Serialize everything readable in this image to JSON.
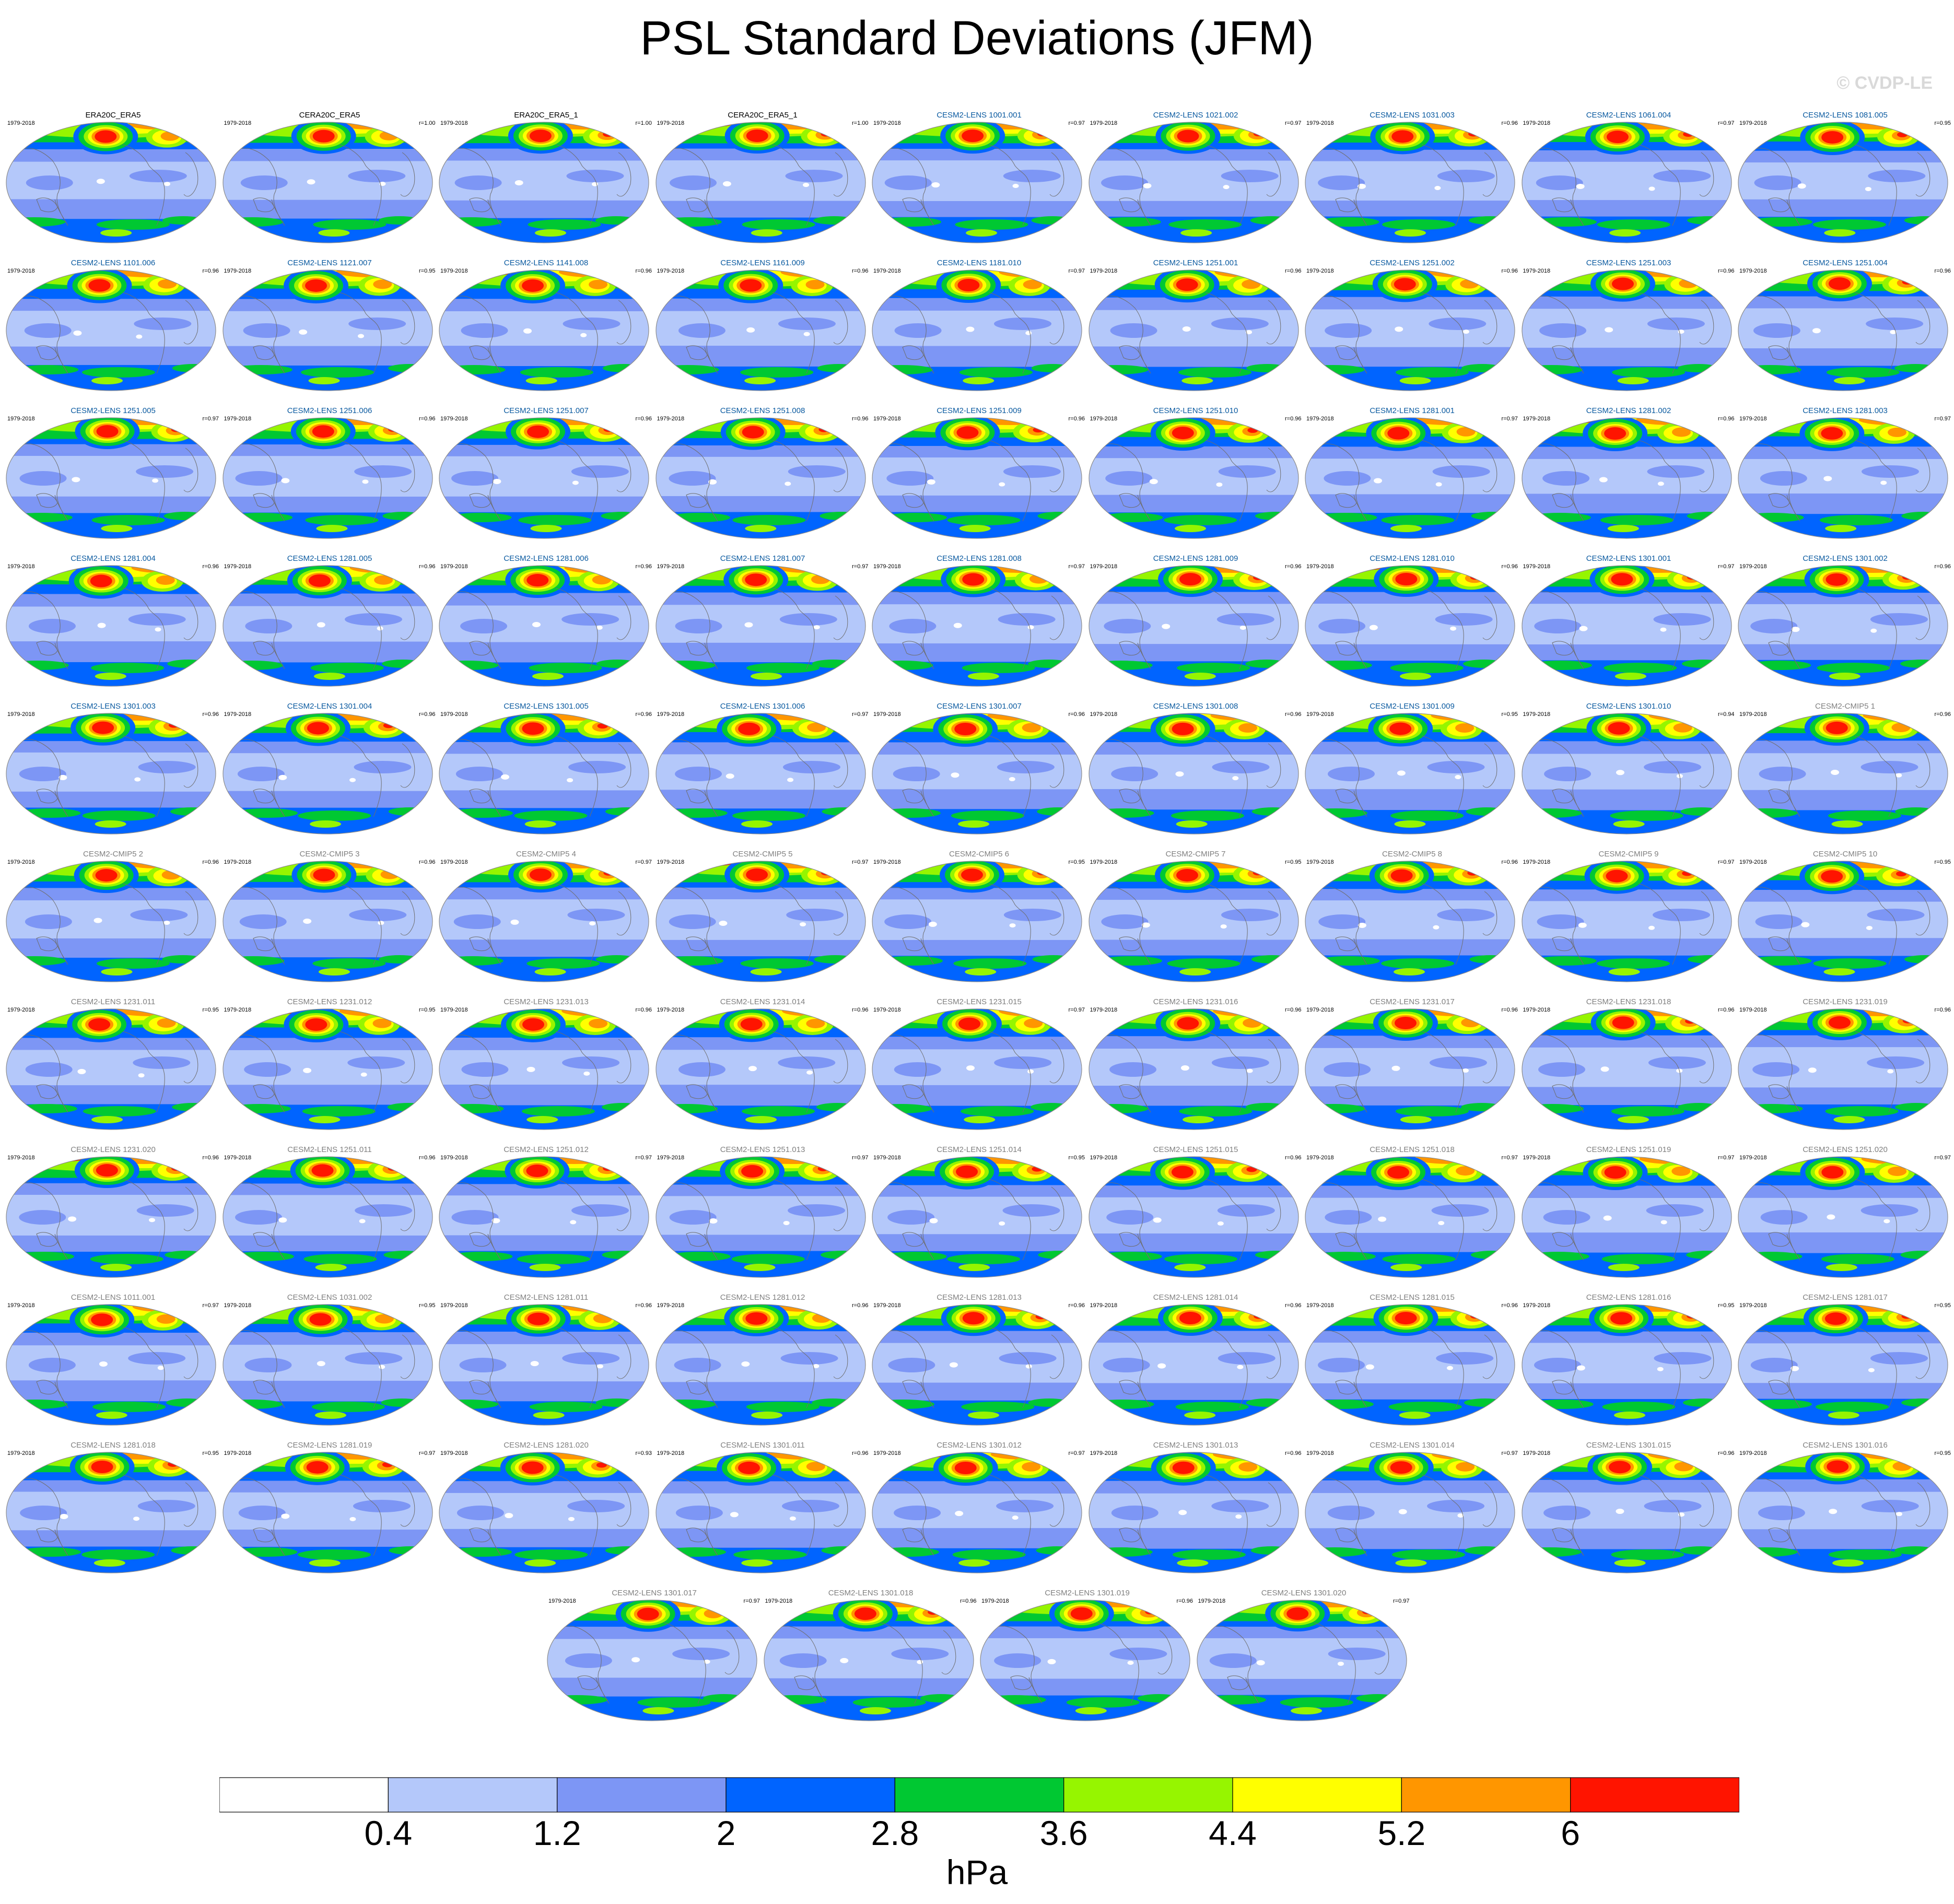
{
  "title": "PSL Standard Deviations (JFM)",
  "watermark": "© CVDP-LE",
  "period": "1979-2018",
  "panels": [
    {
      "name": "ERA20C_ERA5",
      "r": "",
      "ref": true
    },
    {
      "name": "CERA20C_ERA5",
      "r": "r=1.00",
      "ref": true
    },
    {
      "name": "ERA20C_ERA5_1",
      "r": "r=1.00",
      "ref": true
    },
    {
      "name": "CERA20C_ERA5_1",
      "r": "r=1.00",
      "ref": true
    },
    {
      "name": "CESM2-LENS 1001.001",
      "r": "r=0.97"
    },
    {
      "name": "CESM2-LENS 1021.002",
      "r": "r=0.97"
    },
    {
      "name": "CESM2-LENS 1031.003",
      "r": "r=0.96"
    },
    {
      "name": "CESM2-LENS 1061.004",
      "r": "r=0.97"
    },
    {
      "name": "CESM2-LENS 1081.005",
      "r": "r=0.95"
    },
    {
      "name": "CESM2-LENS 1101.006",
      "r": "r=0.96"
    },
    {
      "name": "CESM2-LENS 1121.007",
      "r": "r=0.95"
    },
    {
      "name": "CESM2-LENS 1141.008",
      "r": "r=0.96"
    },
    {
      "name": "CESM2-LENS 1161.009",
      "r": "r=0.96"
    },
    {
      "name": "CESM2-LENS 1181.010",
      "r": "r=0.97"
    },
    {
      "name": "CESM2-LENS 1251.001",
      "r": "r=0.96"
    },
    {
      "name": "CESM2-LENS 1251.002",
      "r": "r=0.96"
    },
    {
      "name": "CESM2-LENS 1251.003",
      "r": "r=0.96"
    },
    {
      "name": "CESM2-LENS 1251.004",
      "r": "r=0.96"
    },
    {
      "name": "CESM2-LENS 1251.005",
      "r": "r=0.97"
    },
    {
      "name": "CESM2-LENS 1251.006",
      "r": "r=0.96"
    },
    {
      "name": "CESM2-LENS 1251.007",
      "r": "r=0.96"
    },
    {
      "name": "CESM2-LENS 1251.008",
      "r": "r=0.96"
    },
    {
      "name": "CESM2-LENS 1251.009",
      "r": "r=0.96"
    },
    {
      "name": "CESM2-LENS 1251.010",
      "r": "r=0.96"
    },
    {
      "name": "CESM2-LENS 1281.001",
      "r": "r=0.97"
    },
    {
      "name": "CESM2-LENS 1281.002",
      "r": "r=0.96"
    },
    {
      "name": "CESM2-LENS 1281.003",
      "r": "r=0.97"
    },
    {
      "name": "CESM2-LENS 1281.004",
      "r": "r=0.96"
    },
    {
      "name": "CESM2-LENS 1281.005",
      "r": "r=0.96"
    },
    {
      "name": "CESM2-LENS 1281.006",
      "r": "r=0.96"
    },
    {
      "name": "CESM2-LENS 1281.007",
      "r": "r=0.97"
    },
    {
      "name": "CESM2-LENS 1281.008",
      "r": "r=0.97"
    },
    {
      "name": "CESM2-LENS 1281.009",
      "r": "r=0.96"
    },
    {
      "name": "CESM2-LENS 1281.010",
      "r": "r=0.96"
    },
    {
      "name": "CESM2-LENS 1301.001",
      "r": "r=0.97"
    },
    {
      "name": "CESM2-LENS 1301.002",
      "r": "r=0.96"
    },
    {
      "name": "CESM2-LENS 1301.003",
      "r": "r=0.96"
    },
    {
      "name": "CESM2-LENS 1301.004",
      "r": "r=0.96"
    },
    {
      "name": "CESM2-LENS 1301.005",
      "r": "r=0.96"
    },
    {
      "name": "CESM2-LENS 1301.006",
      "r": "r=0.97"
    },
    {
      "name": "CESM2-LENS 1301.007",
      "r": "r=0.96"
    },
    {
      "name": "CESM2-LENS 1301.008",
      "r": "r=0.96"
    },
    {
      "name": "CESM2-LENS 1301.009",
      "r": "r=0.95"
    },
    {
      "name": "CESM2-LENS 1301.010",
      "r": "r=0.94"
    },
    {
      "name": "CESM2-CMIP5 1",
      "r": "r=0.96"
    },
    {
      "name": "CESM2-CMIP5 2",
      "r": "r=0.96"
    },
    {
      "name": "CESM2-CMIP5 3",
      "r": "r=0.96"
    },
    {
      "name": "CESM2-CMIP5 4",
      "r": "r=0.97"
    },
    {
      "name": "CESM2-CMIP5 5",
      "r": "r=0.97"
    },
    {
      "name": "CESM2-CMIP5 6",
      "r": "r=0.95"
    },
    {
      "name": "CESM2-CMIP5 7",
      "r": "r=0.95"
    },
    {
      "name": "CESM2-CMIP5 8",
      "r": "r=0.96"
    },
    {
      "name": "CESM2-CMIP5 9",
      "r": "r=0.97"
    },
    {
      "name": "CESM2-CMIP5 10",
      "r": "r=0.95"
    },
    {
      "name": "CESM2-LENS 1231.011",
      "r": "r=0.95"
    },
    {
      "name": "CESM2-LENS 1231.012",
      "r": "r=0.95"
    },
    {
      "name": "CESM2-LENS 1231.013",
      "r": "r=0.96"
    },
    {
      "name": "CESM2-LENS 1231.014",
      "r": "r=0.96"
    },
    {
      "name": "CESM2-LENS 1231.015",
      "r": "r=0.97"
    },
    {
      "name": "CESM2-LENS 1231.016",
      "r": "r=0.96"
    },
    {
      "name": "CESM2-LENS 1231.017",
      "r": "r=0.96"
    },
    {
      "name": "CESM2-LENS 1231.018",
      "r": "r=0.96"
    },
    {
      "name": "CESM2-LENS 1231.019",
      "r": "r=0.96"
    },
    {
      "name": "CESM2-LENS 1231.020",
      "r": "r=0.96"
    },
    {
      "name": "CESM2-LENS 1251.011",
      "r": "r=0.96"
    },
    {
      "name": "CESM2-LENS 1251.012",
      "r": "r=0.97"
    },
    {
      "name": "CESM2-LENS 1251.013",
      "r": "r=0.97"
    },
    {
      "name": "CESM2-LENS 1251.014",
      "r": "r=0.95"
    },
    {
      "name": "CESM2-LENS 1251.015",
      "r": "r=0.96"
    },
    {
      "name": "CESM2-LENS 1251.018",
      "r": "r=0.97"
    },
    {
      "name": "CESM2-LENS 1251.019",
      "r": "r=0.97"
    },
    {
      "name": "CESM2-LENS 1251.020",
      "r": "r=0.97"
    },
    {
      "name": "CESM2-LENS 1011.001",
      "r": "r=0.97"
    },
    {
      "name": "CESM2-LENS 1031.002",
      "r": "r=0.95"
    },
    {
      "name": "CESM2-LENS 1281.011",
      "r": "r=0.96"
    },
    {
      "name": "CESM2-LENS 1281.012",
      "r": "r=0.96"
    },
    {
      "name": "CESM2-LENS 1281.013",
      "r": "r=0.96"
    },
    {
      "name": "CESM2-LENS 1281.014",
      "r": "r=0.96"
    },
    {
      "name": "CESM2-LENS 1281.015",
      "r": "r=0.96"
    },
    {
      "name": "CESM2-LENS 1281.016",
      "r": "r=0.95"
    },
    {
      "name": "CESM2-LENS 1281.017",
      "r": "r=0.95"
    },
    {
      "name": "CESM2-LENS 1281.018",
      "r": "r=0.95"
    },
    {
      "name": "CESM2-LENS 1281.019",
      "r": "r=0.97"
    },
    {
      "name": "CESM2-LENS 1281.020",
      "r": "r=0.93"
    },
    {
      "name": "CESM2-LENS 1301.011",
      "r": "r=0.96"
    },
    {
      "name": "CESM2-LENS 1301.012",
      "r": "r=0.97"
    },
    {
      "name": "CESM2-LENS 1301.013",
      "r": "r=0.96"
    },
    {
      "name": "CESM2-LENS 1301.014",
      "r": "r=0.97"
    },
    {
      "name": "CESM2-LENS 1301.015",
      "r": "r=0.96"
    },
    {
      "name": "CESM2-LENS 1301.016",
      "r": "r=0.95"
    },
    {
      "name": "CESM2-LENS 1301.017",
      "r": "r=0.97"
    },
    {
      "name": "CESM2-LENS 1301.018",
      "r": "r=0.96"
    },
    {
      "name": "CESM2-LENS 1301.019",
      "r": "r=0.96"
    },
    {
      "name": "CESM2-LENS 1301.020",
      "r": "r=0.97"
    }
  ],
  "colorbar": {
    "unit": "hPa",
    "ticks": [
      "0.4",
      "1.2",
      "2",
      "2.8",
      "3.6",
      "4.4",
      "5.2",
      "6"
    ],
    "colors": [
      "#ffffff",
      "#b4c8fa",
      "#7d96f5",
      "#0064ff",
      "#00c832",
      "#96f500",
      "#ffff00",
      "#ff9600",
      "#ff1400"
    ]
  },
  "colors": {
    "title_ref": "#000000",
    "title_lens": "#0a5aa0",
    "title_cmip5": "#808080",
    "coastline": "#6e6e6e",
    "map_border": "#8c8c8c",
    "watermark": "#d9d9d9"
  }
}
